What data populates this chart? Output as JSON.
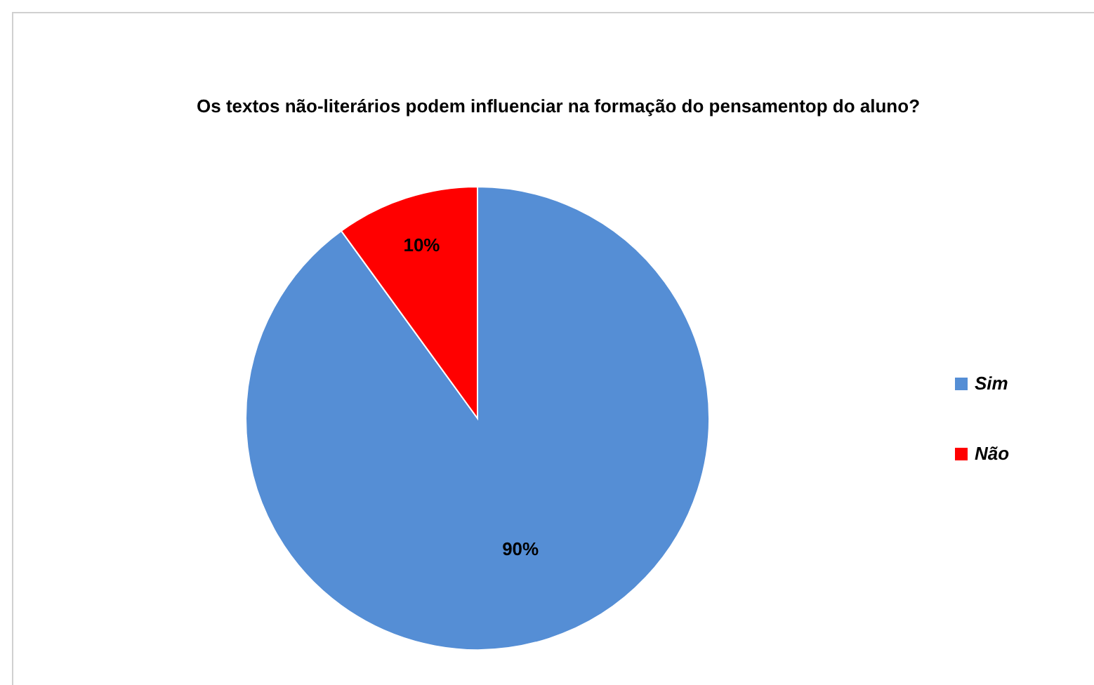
{
  "chart_data": {
    "type": "pie",
    "title": "Os textos não-literários podem influenciar na formação do pensamentop do aluno?",
    "categories": [
      "Sim",
      "Não"
    ],
    "values": [
      90,
      10
    ],
    "colors": [
      "#558ed5",
      "#ff0000"
    ],
    "value_labels": [
      "90%",
      "10%"
    ],
    "legend": "right"
  }
}
